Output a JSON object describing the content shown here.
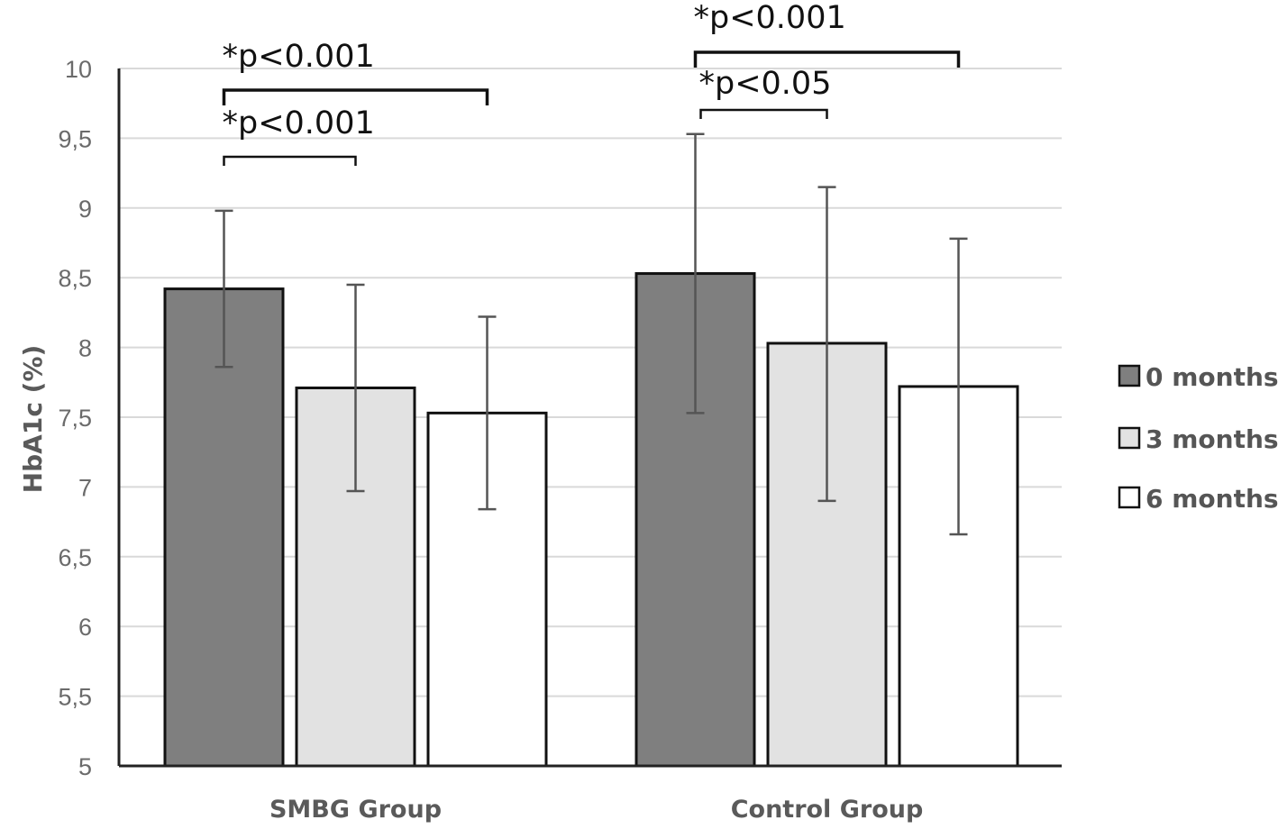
{
  "chart_data": {
    "type": "bar",
    "ylabel": "HbA1c (%)",
    "ylim": [
      5,
      10
    ],
    "yticks": [
      "5",
      "5,5",
      "6",
      "6,5",
      "7",
      "7,5",
      "8",
      "8,5",
      "9",
      "9,5",
      "10"
    ],
    "grid": true,
    "legend_position": "right",
    "categories": [
      "SMBG Group",
      "Control Group"
    ],
    "series": [
      {
        "name": "0 months",
        "color": "#7f7f7f",
        "values": [
          8.42,
          8.53
        ],
        "error_low": [
          7.86,
          7.53
        ],
        "error_high": [
          8.98,
          9.53
        ]
      },
      {
        "name": "3 months",
        "color": "#e2e2e2",
        "values": [
          7.71,
          8.03
        ],
        "error_low": [
          6.97,
          6.9
        ],
        "error_high": [
          8.45,
          9.15
        ]
      },
      {
        "name": "6 months",
        "color": "#ffffff",
        "values": [
          7.53,
          7.72
        ],
        "error_low": [
          6.84,
          6.66
        ],
        "error_high": [
          8.22,
          8.78
        ]
      }
    ],
    "annotations": [
      {
        "text": "*p<0.001",
        "group": 0,
        "from_series": 0,
        "to_series": 2
      },
      {
        "text": "*p<0.001",
        "group": 0,
        "from_series": 0,
        "to_series": 1
      },
      {
        "text": "*p<0.001",
        "group": 1,
        "from_series": 0,
        "to_series": 2
      },
      {
        "text": "*p<0.05",
        "group": 1,
        "from_series": 0,
        "to_series": 1
      }
    ]
  }
}
